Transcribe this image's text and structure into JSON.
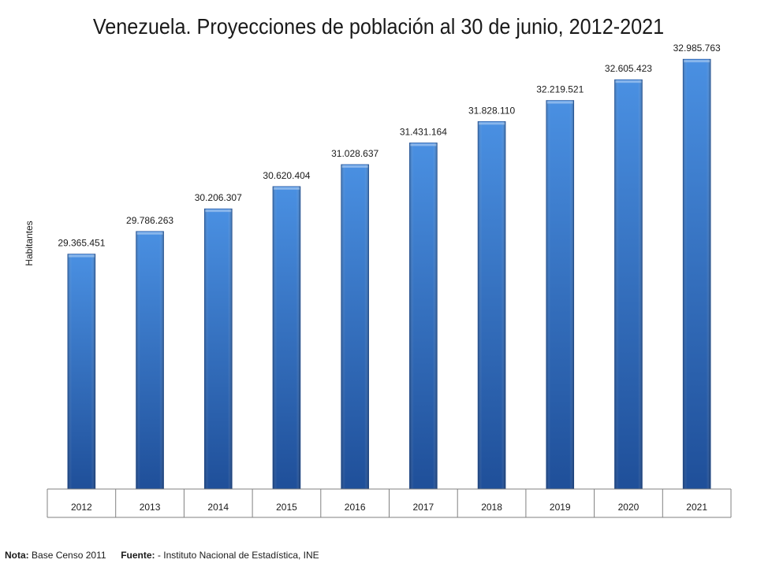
{
  "chart_data": {
    "type": "bar",
    "title": "Venezuela. Proyecciones de población al 30 de junio, 2012-2021",
    "xlabel": "",
    "ylabel": "Habitantes",
    "categories": [
      "2012",
      "2013",
      "2014",
      "2015",
      "2016",
      "2017",
      "2018",
      "2019",
      "2020",
      "2021"
    ],
    "values": [
      29365451,
      29786263,
      30206307,
      30620404,
      31028637,
      31431164,
      31828110,
      32219521,
      32605423,
      32985763
    ],
    "data_labels": [
      "29.365.451",
      "29.786.263",
      "30.206.307",
      "30.620.404",
      "31.028.637",
      "31.431.164",
      "31.828.110",
      "32.219.521",
      "32.605.423",
      "32.985.763"
    ],
    "ylim": [
      25000000,
      33500000
    ],
    "grid": false,
    "legend": "none",
    "colors": {
      "bar_light": "#4a90e2",
      "bar_dark": "#1f4f99",
      "axis": "#808080"
    }
  },
  "footer": {
    "nota_label": "Nota:",
    "nota_text": "Base Censo 2011",
    "fuente_label": "Fuente:",
    "fuente_text": "- Instituto Nacional de Estadística, INE"
  }
}
